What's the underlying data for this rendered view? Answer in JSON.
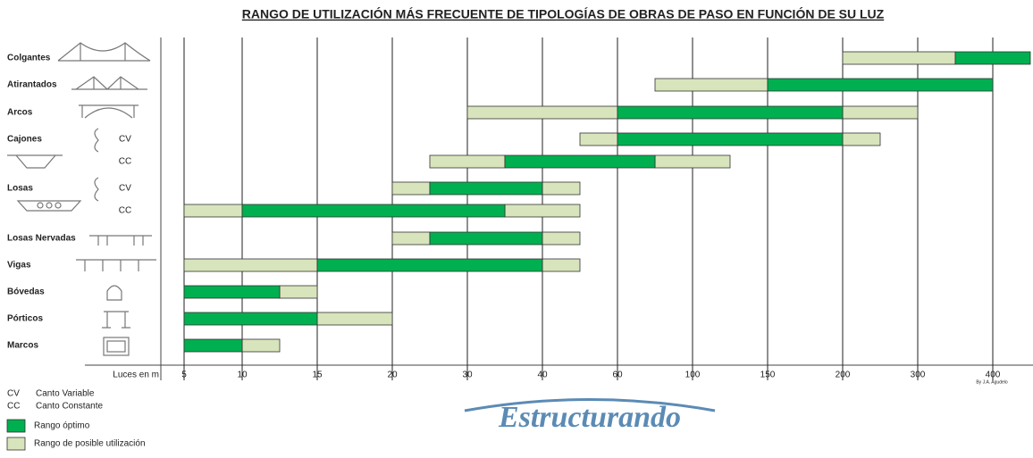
{
  "chart_data": {
    "type": "range-bar",
    "title": "RANGO DE UTILIZACIÓN MÁS FRECUENTE DE TIPOLOGÍAS DE OBRAS DE PASO EN FUNCIÓN DE SU LUZ",
    "x_label": "Luces en m",
    "xticks": [
      5,
      10,
      15,
      20,
      30,
      40,
      60,
      100,
      150,
      200,
      300,
      400
    ],
    "categories": [
      {
        "label": "Colgantes",
        "sub": null
      },
      {
        "label": "Atirantados",
        "sub": null
      },
      {
        "label": "Arcos",
        "sub": null
      },
      {
        "label": "Cajones",
        "sub": "CV"
      },
      {
        "label": null,
        "sub": "CC"
      },
      {
        "label": "Losas",
        "sub": "CV"
      },
      {
        "label": null,
        "sub": "CC"
      },
      {
        "label": "Losas Nervadas",
        "sub": null
      },
      {
        "label": "Vigas",
        "sub": null
      },
      {
        "label": "Bóvedas",
        "sub": null
      },
      {
        "label": "Pórticos",
        "sub": null
      },
      {
        "label": "Marcos",
        "sub": null
      }
    ],
    "series": [
      {
        "name": "Rango de posible utilización",
        "color": "#d8e4bc",
        "values": [
          [
            [
              200,
              350
            ]
          ],
          [
            [
              80,
              150
            ]
          ],
          [
            [
              30,
              60
            ],
            [
              200,
              300
            ]
          ],
          [
            [
              50,
              60
            ],
            [
              200,
              250
            ]
          ],
          [
            [
              25,
              35
            ],
            [
              80,
              125
            ]
          ],
          [
            [
              20,
              25
            ],
            [
              40,
              50
            ]
          ],
          [
            [
              5,
              10
            ],
            [
              35,
              50
            ]
          ],
          [
            [
              20,
              25
            ],
            [
              40,
              50
            ]
          ],
          [
            [
              5,
              15
            ],
            [
              40,
              50
            ]
          ],
          [
            [
              12.5,
              15
            ]
          ],
          [
            [
              15,
              20
            ]
          ],
          [
            [
              10,
              12.5
            ]
          ]
        ]
      },
      {
        "name": "Rango óptimo",
        "color": "#00b050",
        "values": [
          [
            [
              350,
              450
            ]
          ],
          [
            [
              150,
              400
            ]
          ],
          [
            [
              60,
              200
            ]
          ],
          [
            [
              60,
              200
            ]
          ],
          [
            [
              35,
              80
            ]
          ],
          [
            [
              25,
              40
            ]
          ],
          [
            [
              10,
              35
            ]
          ],
          [
            [
              25,
              40
            ]
          ],
          [
            [
              15,
              40
            ]
          ],
          [
            [
              5,
              12.5
            ]
          ],
          [
            [
              5,
              15
            ]
          ],
          [
            [
              5,
              10
            ]
          ]
        ]
      }
    ],
    "legend_order": [
      1,
      0
    ],
    "abbreviations": [
      {
        "code": "CV",
        "text": "Canto Variable"
      },
      {
        "code": "CC",
        "text": "Canto Constante"
      }
    ],
    "credit": "By J.A. Agudelo",
    "brand": "Estructurando"
  }
}
